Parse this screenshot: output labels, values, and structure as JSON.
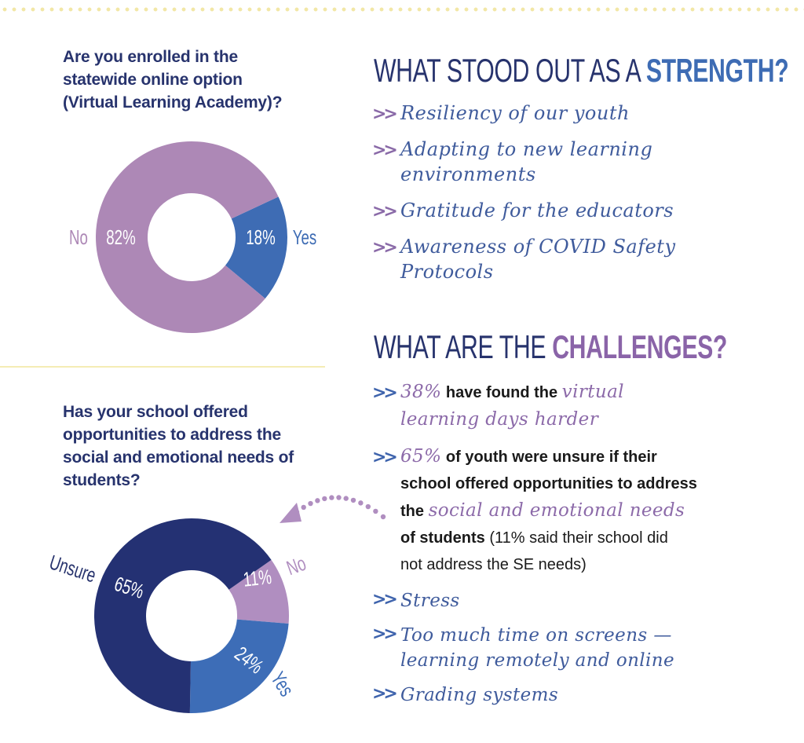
{
  "colors": {
    "navy": "#27336d",
    "blue": "#3e6cb4",
    "purple": "#8a64a8",
    "lavender": "#ad88b6",
    "dark_navy": "#243173",
    "mid_blue": "#3d6db7",
    "light_purple": "#b08ec0",
    "yellow": "#f4ecb4"
  },
  "questions": {
    "q1": "Are you enrolled in the\nstatewide online option\n(Virtual Learning Academy)?",
    "q2": "Has your school offered\nopportunities to address the\nsocial and emotional needs of\nstudents?"
  },
  "strength_heading": {
    "prefix": "WHAT STOOD OUT AS A ",
    "accent": "STRENGTH?"
  },
  "strengths": [
    "Resiliency of our youth",
    "Adapting to new learning\nenvironments",
    "Gratitude for the educators",
    "Awareness of COVID Safety\nProtocols"
  ],
  "challenge_heading": {
    "prefix": "WHAT ARE THE ",
    "accent": "CHALLENGES?"
  },
  "challenges": {
    "c1": {
      "pct": "38%",
      "bold": " have found the ",
      "hand": "virtual\nlearning days harder"
    },
    "c2": {
      "pct": "65%",
      "bold1": " of youth were unsure if their\nschool offered opportunities to address\nthe ",
      "hand": "social and emotional needs",
      "bold2": "\nof students",
      "plain": " (11% said their school did\nnot address the SE needs)"
    },
    "c3": "Stress",
    "c4": "Too much time on screens —\nlearning remotely and online",
    "c5": "Grading systems"
  },
  "chevron": ">>",
  "chart_data": [
    {
      "type": "pie",
      "donut": true,
      "title": "Are you enrolled in the statewide online option (Virtual Learning Academy)?",
      "slices": [
        {
          "label": "No",
          "value": 82,
          "display": "82%",
          "color": "#ad88b6"
        },
        {
          "label": "Yes",
          "value": 18,
          "display": "18%",
          "color": "#3e6cb4"
        }
      ]
    },
    {
      "type": "pie",
      "donut": true,
      "title": "Has your school offered opportunities to address the social and emotional needs of students?",
      "slices": [
        {
          "label": "Unsure",
          "value": 65,
          "display": "65%",
          "color": "#243173"
        },
        {
          "label": "No",
          "value": 11,
          "display": "11%",
          "color": "#b08ec0"
        },
        {
          "label": "Yes",
          "value": 24,
          "display": "24%",
          "color": "#3d6db7"
        }
      ]
    }
  ]
}
